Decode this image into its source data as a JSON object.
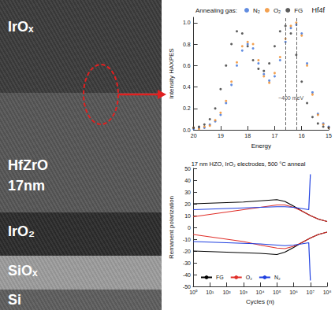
{
  "tem_image": {
    "layers": [
      {
        "label": "IrOₓ"
      },
      {
        "label": "HfZrO",
        "sublabel": "17nm"
      },
      {
        "label": "IrO₂"
      },
      {
        "label": "SiOₓ"
      },
      {
        "label": "Si"
      }
    ]
  },
  "chart_data": [
    {
      "type": "scatter",
      "title": "Hf4f",
      "legend_title": "Annealing gas:",
      "x_label": "Energy",
      "y_label": "Intensity HAXPES",
      "x": [
        20,
        19.8,
        19.6,
        19.4,
        19.2,
        19,
        18.8,
        18.6,
        18.4,
        18.2,
        18,
        17.8,
        17.6,
        17.4,
        17.2,
        17,
        16.8,
        16.6,
        16.4,
        16.2,
        16,
        15.8,
        15.6,
        15.4,
        15.2,
        15
      ],
      "series": [
        {
          "name": "N₂",
          "color": "#3a6fd8",
          "values": [
            0.01,
            0.02,
            0.02,
            0.05,
            0.08,
            0.14,
            0.25,
            0.42,
            0.6,
            0.74,
            0.8,
            0.76,
            0.62,
            0.52,
            0.46,
            0.5,
            0.65,
            0.82,
            0.95,
            0.98,
            0.9,
            0.62,
            0.35,
            0.15,
            0.06,
            0.03
          ]
        },
        {
          "name": "O₂",
          "color": "#f08a24",
          "values": [
            0.02,
            0.01,
            0.03,
            0.04,
            0.09,
            0.16,
            0.27,
            0.45,
            0.63,
            0.78,
            0.82,
            0.8,
            0.65,
            0.5,
            0.44,
            0.53,
            0.68,
            0.85,
            0.97,
            1.0,
            0.88,
            0.6,
            0.33,
            0.14,
            0.05,
            0.02
          ]
        },
        {
          "name": "FG",
          "color": "#333333",
          "values": [
            0.02,
            0.03,
            0.05,
            0.1,
            0.2,
            0.38,
            0.6,
            0.8,
            0.92,
            0.9,
            0.78,
            0.65,
            0.57,
            0.55,
            0.62,
            0.78,
            0.92,
            0.97,
            0.9,
            0.7,
            0.45,
            0.25,
            0.12,
            0.06,
            0.03,
            0.02
          ]
        }
      ],
      "xlim": [
        20,
        15
      ],
      "xticks": [
        20,
        19,
        18,
        17,
        16,
        15
      ],
      "ylim": [
        0,
        1.05
      ],
      "yticks": [
        {
          "value": 0,
          "label": "0.0"
        },
        {
          "value": 0.2,
          "label": "0.2"
        },
        {
          "value": 0.4,
          "label": "0.4"
        },
        {
          "value": 0.6,
          "label": "0.6"
        },
        {
          "value": 0.8,
          "label": "0.8"
        },
        {
          "value": 1,
          "label": "1.0"
        }
      ],
      "reference_lines": [
        16.6,
        16.2
      ],
      "annotations": [
        {
          "text": "~400 meV",
          "x": 16.4,
          "y": 0.3
        }
      ],
      "marker": "circle",
      "grid": false,
      "legend": "top"
    },
    {
      "type": "line",
      "title": "17 nm HZO, IrO₂ electrodes, 500 °C anneal",
      "x_label": "Cycles (n)",
      "y_label": "Remanent polarization",
      "log": "x",
      "xlim": [
        1,
        100000000
      ],
      "xticks": [
        {
          "value": 1,
          "label": "10⁰"
        },
        {
          "value": 10,
          "label": "10¹"
        },
        {
          "value": 100,
          "label": "10²"
        },
        {
          "value": 1000,
          "label": "10³"
        },
        {
          "value": 10000,
          "label": "10⁴"
        },
        {
          "value": 100000,
          "label": "10⁵"
        },
        {
          "value": 1000000,
          "label": "10⁶"
        },
        {
          "value": 10000000,
          "label": "10⁷"
        },
        {
          "value": 100000000,
          "label": "10⁸"
        }
      ],
      "ylim": [
        -50,
        50
      ],
      "yticks": [
        -50,
        -40,
        -30,
        -20,
        -10,
        0,
        10,
        20,
        30,
        40,
        50
      ],
      "grid": false,
      "legend": "bottom left",
      "series": [
        {
          "name": "FG",
          "color": "#000000",
          "x": [
            1,
            10,
            100,
            1000,
            10000,
            100000,
            300000,
            1000000,
            3000000,
            10000000,
            30000000,
            100000000
          ],
          "positive": [
            20,
            20.5,
            21,
            21.5,
            22.5,
            23.5,
            22,
            18,
            14,
            10,
            7,
            5
          ],
          "negative": [
            -20,
            -20.5,
            -21,
            -21.5,
            -22,
            -23,
            -21,
            -17,
            -13,
            -9,
            -6,
            -4
          ]
        },
        {
          "name": "O₂",
          "color": "#e0302a",
          "x": [
            1,
            10,
            100,
            1000,
            10000,
            100000,
            300000,
            1000000,
            3000000,
            10000000,
            30000000,
            100000000
          ],
          "positive": [
            9,
            11,
            13,
            15,
            17,
            19,
            19,
            17,
            14,
            10,
            7,
            5
          ],
          "negative": [
            -6,
            -8,
            -10,
            -12,
            -15,
            -17.5,
            -18,
            -16,
            -13,
            -9,
            -6,
            -4
          ]
        },
        {
          "name": "N₂",
          "color": "#2040e0",
          "x": [
            1,
            10,
            100,
            1000,
            10000,
            100000,
            300000,
            1000000,
            3000000,
            8000000,
            10000000
          ],
          "positive": [
            15,
            15.5,
            16,
            16.5,
            17,
            17.5,
            17.5,
            17,
            16,
            15,
            45
          ],
          "negative": [
            -12,
            -12.5,
            -13,
            -13.5,
            -14,
            -15,
            -15.5,
            -15,
            -14,
            -13,
            -45
          ]
        }
      ]
    }
  ]
}
